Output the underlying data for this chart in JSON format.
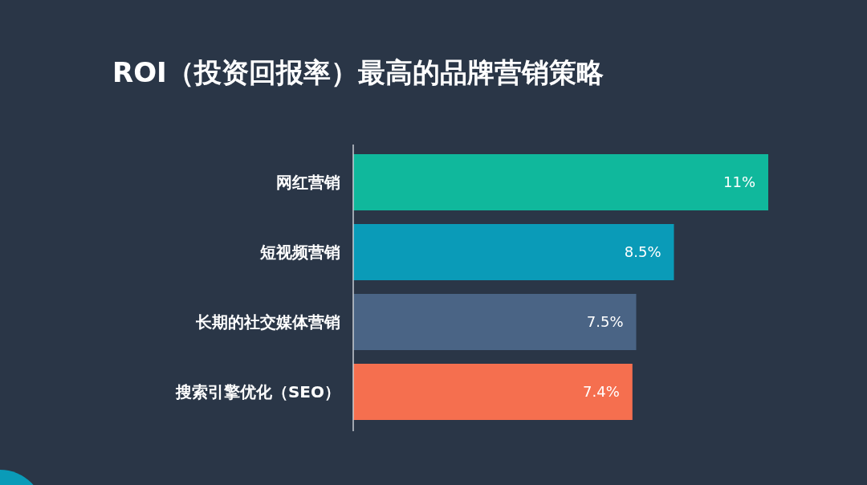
{
  "chart_data": {
    "type": "bar",
    "orientation": "horizontal",
    "title": "ROI（投资回报率）最高的品牌营销策略",
    "categories": [
      "网红营销",
      "短视频营销",
      "长期的社交媒体营销",
      "搜索引擎优化（SEO）"
    ],
    "values": [
      11,
      8.5,
      7.5,
      7.4
    ],
    "colors": [
      "#10b89c",
      "#0a9bb8",
      "#4a6485",
      "#f56f4f"
    ],
    "value_labels": [
      "11%",
      "8.5%",
      "7.5%",
      "7.4%"
    ]
  }
}
